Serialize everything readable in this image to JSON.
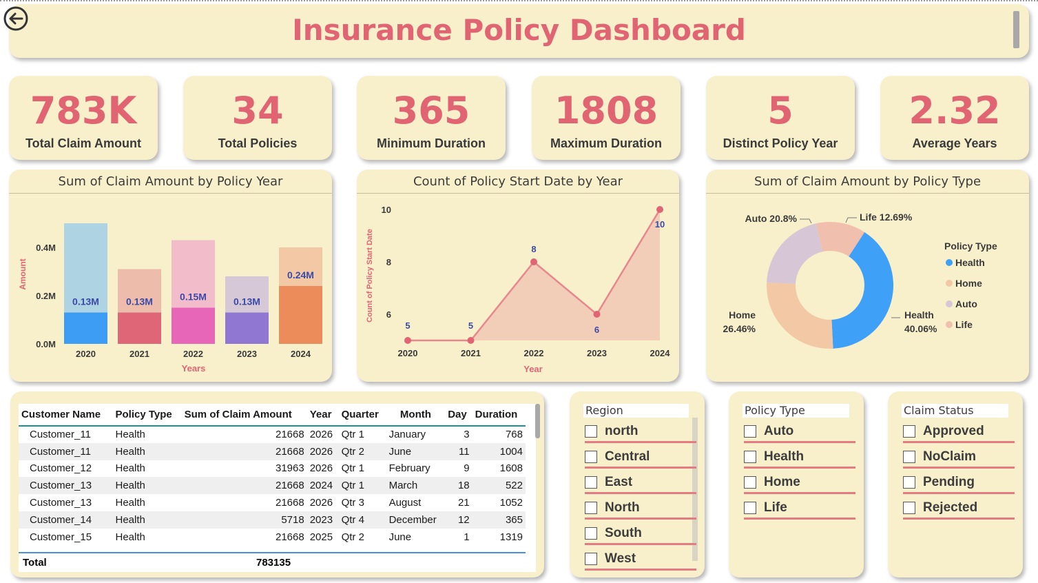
{
  "header": {
    "title": "Insurance Policy Dashboard"
  },
  "kpis": [
    {
      "value": "783K",
      "label": "Total Claim Amount"
    },
    {
      "value": "34",
      "label": "Total Policies"
    },
    {
      "value": "365",
      "label": "Minimum Duration"
    },
    {
      "value": "1808",
      "label": "Maximum Duration"
    },
    {
      "value": "5",
      "label": "Distinct Policy Year"
    },
    {
      "value": "2.32",
      "label": "Average Years"
    }
  ],
  "colors": {
    "accent": "#e06472",
    "card_bg": "#f8efcb",
    "axis_title": "#e06472",
    "data_label": "#3a4aa8"
  },
  "chart_data": [
    {
      "type": "bar",
      "title": "Sum of Claim Amount by Policy Year",
      "xlabel": "Years",
      "ylabel": "Amount",
      "categories": [
        "2020",
        "2021",
        "2022",
        "2023",
        "2024"
      ],
      "values": [
        0.13,
        0.13,
        0.15,
        0.13,
        0.24
      ],
      "value_labels": [
        "0.13M",
        "0.13M",
        "0.15M",
        "0.13M",
        "0.24M"
      ],
      "background_values": [
        0.5,
        0.31,
        0.43,
        0.28,
        0.4
      ],
      "yticks": [
        "0.0M",
        "0.2M",
        "0.4M"
      ],
      "ylim": [
        0,
        0.5
      ],
      "colors": [
        "#3d9df5",
        "#df6676",
        "#e766b7",
        "#9077d2",
        "#ec8c5a"
      ],
      "background_colors": [
        "#aed3e3",
        "#eebcaa",
        "#f3bccb",
        "#d6c8d6",
        "#f3c8a4"
      ]
    },
    {
      "type": "area",
      "title": "Count of Policy Start Date by Year",
      "xlabel": "Year",
      "ylabel": "Count of Policy Start Date",
      "x": [
        "2020",
        "2021",
        "2022",
        "2023",
        "2024"
      ],
      "values": [
        5,
        5,
        8,
        6,
        10
      ],
      "yticks": [
        "6",
        "8",
        "10"
      ],
      "ylim": [
        5,
        10
      ],
      "line_color": "#e8868d",
      "fill_color": "#f2cdb8"
    },
    {
      "type": "pie",
      "title": "Sum of Claim Amount by Policy Type",
      "legend_title": "Policy Type",
      "legend_position": "right",
      "slices": [
        {
          "name": "Health",
          "value": 40.06,
          "label": "Health 40.06%",
          "color": "#3ea0f7"
        },
        {
          "name": "Home",
          "value": 26.46,
          "label": "Home 26.46%",
          "color": "#f2c9a4"
        },
        {
          "name": "Auto",
          "value": 20.8,
          "label": "Auto 20.8%",
          "color": "#d6c6d6"
        },
        {
          "name": "Life",
          "value": 12.69,
          "label": "Life 12.69%",
          "color": "#f1bfae"
        }
      ],
      "label_texts": {
        "auto": "Auto 20.8%",
        "life": "Life 12.69%",
        "home_name": "Home",
        "home_pct": "26.46%",
        "health_name": "Health",
        "health_pct": "40.06%"
      }
    }
  ],
  "table": {
    "columns": [
      "Customer Name",
      "Policy Type",
      "Sum of Claim Amount",
      "Year",
      "Quarter",
      "Month",
      "Day",
      "Duration"
    ],
    "rows": [
      [
        "Customer_11",
        "Health",
        "21668",
        "2026",
        "Qtr 1",
        "January",
        "3",
        "768"
      ],
      [
        "Customer_11",
        "Health",
        "21668",
        "2026",
        "Qtr 2",
        "June",
        "11",
        "1004"
      ],
      [
        "Customer_12",
        "Health",
        "31963",
        "2026",
        "Qtr 1",
        "February",
        "9",
        "1608"
      ],
      [
        "Customer_13",
        "Health",
        "21668",
        "2024",
        "Qtr 1",
        "March",
        "18",
        "522"
      ],
      [
        "Customer_13",
        "Health",
        "21668",
        "2026",
        "Qtr 3",
        "August",
        "21",
        "1052"
      ],
      [
        "Customer_14",
        "Health",
        "5718",
        "2023",
        "Qtr 4",
        "December",
        "12",
        "365"
      ],
      [
        "Customer_15",
        "Health",
        "21668",
        "2025",
        "Qtr 2",
        "June",
        "1",
        "1319"
      ]
    ],
    "total_label": "Total",
    "total_value": "783135"
  },
  "slicers": {
    "region": {
      "title": "Region",
      "items": [
        "north",
        "Central",
        "East",
        "North",
        "South",
        "West"
      ]
    },
    "policy_type": {
      "title": "Policy Type",
      "items": [
        "Auto",
        "Health",
        "Home",
        "Life"
      ]
    },
    "claim_status": {
      "title": "Claim Status",
      "items": [
        "Approved",
        "NoClaim",
        "Pending",
        "Rejected"
      ]
    }
  },
  "icons": {
    "back": "back-arrow-icon"
  }
}
